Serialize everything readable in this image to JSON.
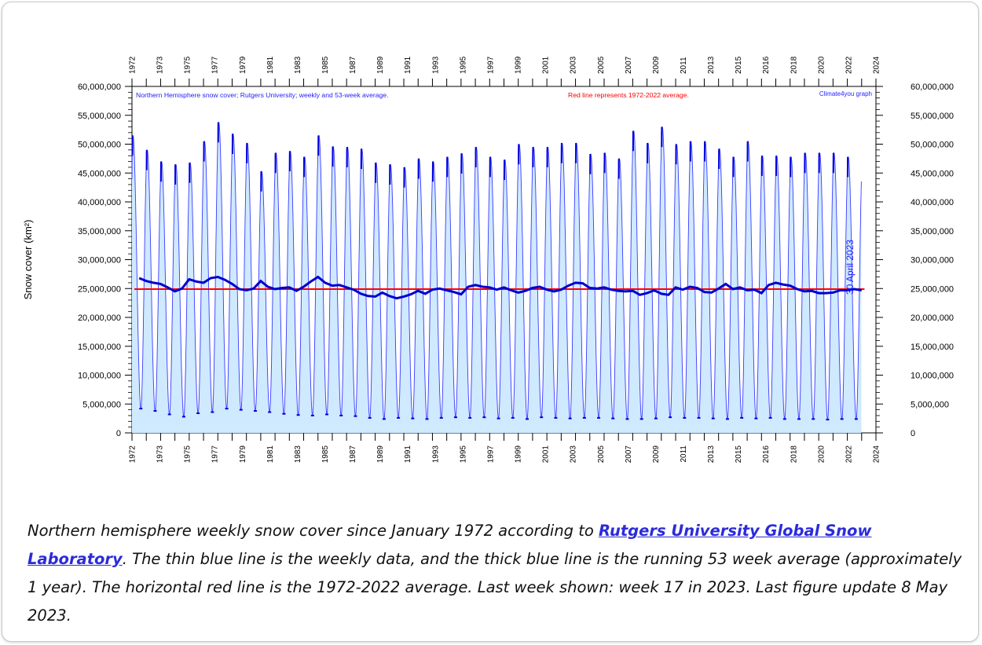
{
  "chart_data": {
    "type": "line",
    "title": "Northern Hemisphere snow cover; Rutgers University; weekly and 53-week average.",
    "title_red": "Red line represents 1972-2022 average.",
    "credit": "Climate4you graph",
    "ylabel": "Snow cover (km²)",
    "side_label": "30 April 2023",
    "ylim": [
      0,
      60000000
    ],
    "xlim": [
      1972,
      2024
    ],
    "y_ticks": [
      "0",
      "5,000,000",
      "10,000,000",
      "15,000,000",
      "20,000,000",
      "25,000,000",
      "30,000,000",
      "35,000,000",
      "40,000,000",
      "45,000,000",
      "50,000,000",
      "55,000,000",
      "60,000,000"
    ],
    "x_tick_labels": [
      "1972",
      "1973",
      "1975",
      "1977",
      "1979",
      "1981",
      "1983",
      "1985",
      "1987",
      "1989",
      "1991",
      "1993",
      "1995",
      "1997",
      "1999",
      "2001",
      "2003",
      "2005",
      "2007",
      "2009",
      "2011",
      "2013",
      "2015",
      "2016",
      "2018",
      "2020",
      "2022",
      "2024"
    ],
    "average_1972_2022": 24900000,
    "series": [
      {
        "style": "weekly (thin blue)",
        "annual_peaks": [
          51500000,
          49000000,
          47000000,
          46500000,
          46800000,
          50500000,
          53800000,
          51800000,
          50200000,
          45300000,
          48500000,
          48800000,
          47800000,
          51500000,
          49600000,
          49500000,
          49200000,
          46800000,
          46500000,
          46000000,
          47500000,
          47000000,
          47800000,
          48400000,
          49500000,
          47800000,
          47300000,
          50000000,
          49500000,
          49500000,
          50200000,
          50200000,
          48300000,
          48500000,
          47500000,
          52300000,
          50200000,
          53000000,
          50000000,
          50500000,
          50500000,
          49200000,
          47800000,
          50500000,
          48000000,
          48000000,
          47800000,
          48500000,
          48500000,
          48500000,
          47800000
        ],
        "annual_minima": [
          4200000,
          3800000,
          3200000,
          2800000,
          3400000,
          3600000,
          4200000,
          4000000,
          3800000,
          3600000,
          3300000,
          3100000,
          3000000,
          3200000,
          3000000,
          2900000,
          2600000,
          2400000,
          2600000,
          2500000,
          2400000,
          2600000,
          2700000,
          2600000,
          2700000,
          2500000,
          2600000,
          2400000,
          2700000,
          2600000,
          2500000,
          2600000,
          2600000,
          2500000,
          2400000,
          2400000,
          2500000,
          2700000,
          2600000,
          2600000,
          2500000,
          2400000,
          2600000,
          2500000,
          2600000,
          2400000,
          2400000,
          2400000,
          2300000,
          2400000,
          2400000
        ]
      },
      {
        "style": "53-week average (thick blue)",
        "x": [
          1972.5,
          1973.0,
          1973.5,
          1974.0,
          1974.5,
          1975.0,
          1975.5,
          1976.0,
          1976.5,
          1977.0,
          1977.5,
          1978.0,
          1978.5,
          1979.0,
          1979.5,
          1980.0,
          1980.5,
          1981.0,
          1981.5,
          1982.0,
          1982.5,
          1983.0,
          1983.5,
          1984.0,
          1984.5,
          1985.0,
          1985.5,
          1986.0,
          1986.5,
          1987.0,
          1987.5,
          1988.0,
          1988.5,
          1989.0,
          1989.5,
          1990.0,
          1990.5,
          1991.0,
          1991.5,
          1992.0,
          1992.5,
          1993.0,
          1993.5,
          1994.0,
          1994.5,
          1995.0,
          1995.5,
          1996.0,
          1996.5,
          1997.0,
          1997.5,
          1998.0,
          1998.5,
          1999.0,
          1999.5,
          2000.0,
          2000.5,
          2001.0,
          2001.5,
          2002.0,
          2002.5,
          2003.0,
          2003.5,
          2004.0,
          2004.5,
          2005.0,
          2005.5,
          2006.0,
          2006.5,
          2007.0,
          2007.5,
          2008.0,
          2008.5,
          2009.0,
          2009.5,
          2010.0,
          2010.5,
          2011.0,
          2011.5,
          2012.0,
          2012.5,
          2013.0,
          2013.5,
          2014.0,
          2014.5,
          2015.0,
          2015.5,
          2016.0,
          2016.5,
          2017.0,
          2017.5,
          2018.0,
          2018.5,
          2019.0,
          2019.5,
          2020.0,
          2020.5,
          2021.0,
          2021.5,
          2022.0,
          2022.5,
          2023.0
        ],
        "values": [
          26800000,
          26300000,
          26000000,
          25800000,
          25200000,
          24500000,
          25000000,
          26600000,
          26200000,
          26000000,
          26800000,
          27000000,
          26500000,
          25800000,
          24900000,
          24700000,
          25000000,
          26300000,
          25300000,
          24900000,
          25100000,
          25200000,
          24600000,
          25300000,
          26200000,
          27000000,
          26000000,
          25500000,
          25600000,
          25200000,
          24800000,
          24100000,
          23700000,
          23600000,
          24300000,
          23700000,
          23300000,
          23600000,
          24000000,
          24600000,
          24100000,
          24800000,
          25000000,
          24700000,
          24400000,
          24000000,
          25300000,
          25600000,
          25300000,
          25200000,
          24800000,
          25200000,
          24700000,
          24300000,
          24600000,
          25100000,
          25300000,
          24800000,
          24500000,
          24800000,
          25500000,
          26000000,
          25900000,
          25100000,
          25000000,
          25200000,
          24800000,
          24600000,
          24500000,
          24600000,
          23900000,
          24200000,
          24700000,
          24100000,
          23900000,
          25200000,
          24800000,
          25300000,
          25100000,
          24400000,
          24300000,
          25000000,
          25800000,
          24900000,
          25200000,
          24700000,
          24800000,
          24200000,
          25600000,
          26000000,
          25700000,
          25500000,
          24900000,
          24500000,
          24600000,
          24200000,
          24200000,
          24300000,
          24700000,
          24700000,
          24900000,
          24700000
        ]
      }
    ]
  },
  "caption": {
    "prefix": "Northern hemisphere weekly snow cover since January 1972 according to ",
    "link_text": "Rutgers University Global Snow Laboratory",
    "suffix": ". The thin blue line is the weekly data, and the thick blue line is the running 53 week average (approximately 1 year). The horizontal red line is the 1972-2022 average. Last week shown: week 17 in 2023. Last figure update 8 May 2023."
  }
}
